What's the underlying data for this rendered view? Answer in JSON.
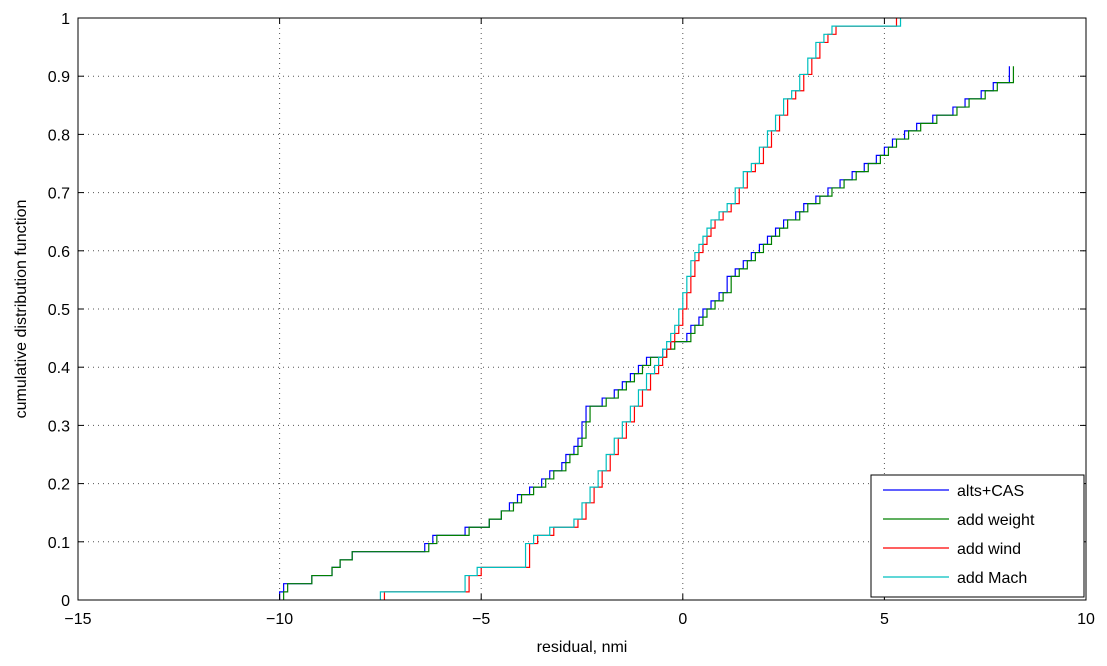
{
  "chart_data": {
    "type": "line",
    "xlabel": "residual, nmi",
    "ylabel": "cumulative distribution function",
    "xlim": [
      -15,
      10
    ],
    "ylim": [
      0,
      1
    ],
    "xticks": [
      -15,
      -10,
      -5,
      0,
      5,
      10
    ],
    "yticks": [
      0,
      0.1,
      0.2,
      0.3,
      0.4,
      0.5,
      0.6,
      0.7,
      0.8,
      0.9,
      1
    ],
    "xtick_labels": [
      "−15",
      "−10",
      "−5",
      "0",
      "5",
      "10"
    ],
    "ytick_labels": [
      "0",
      "0.1",
      "0.2",
      "0.3",
      "0.4",
      "0.5",
      "0.6",
      "0.7",
      "0.8",
      "0.9",
      "1"
    ],
    "grid": true,
    "legend_position": "bottom-right",
    "series": [
      {
        "name": "alts+CAS",
        "color": "#0000ff",
        "x": [
          -10,
          -9.9,
          -9.2,
          -8.7,
          -8.5,
          -8.2,
          -8.0,
          -6.4,
          -6.2,
          -5.4,
          -5.1,
          -4.8,
          -4.5,
          -4.3,
          -4.1,
          -3.8,
          -3.5,
          -3.3,
          -3.0,
          -2.9,
          -2.7,
          -2.6,
          -2.5,
          -2.4,
          -2.2,
          -2.0,
          -1.7,
          -1.5,
          -1.3,
          -1.1,
          -0.9,
          -0.7,
          -0.5,
          -0.3,
          -0.1,
          0.1,
          0.2,
          0.4,
          0.5,
          0.7,
          0.9,
          1.1,
          1.3,
          1.5,
          1.7,
          1.9,
          2.1,
          2.3,
          2.5,
          2.8,
          3.0,
          3.3,
          3.6,
          3.9,
          4.2,
          4.5,
          4.8,
          5.0,
          5.2,
          5.5,
          5.8,
          6.2,
          6.7,
          7.0,
          7.4,
          7.7,
          8.1
        ],
        "y": [
          0.014,
          0.028,
          0.042,
          0.056,
          0.069,
          0.083,
          0.083,
          0.097,
          0.111,
          0.125,
          0.125,
          0.139,
          0.153,
          0.167,
          0.181,
          0.194,
          0.208,
          0.222,
          0.236,
          0.25,
          0.264,
          0.278,
          0.306,
          0.333,
          0.333,
          0.347,
          0.361,
          0.375,
          0.389,
          0.403,
          0.417,
          0.417,
          0.431,
          0.444,
          0.444,
          0.458,
          0.472,
          0.486,
          0.5,
          0.514,
          0.528,
          0.556,
          0.569,
          0.583,
          0.597,
          0.611,
          0.625,
          0.639,
          0.653,
          0.667,
          0.681,
          0.694,
          0.708,
          0.722,
          0.736,
          0.75,
          0.764,
          0.778,
          0.792,
          0.806,
          0.819,
          0.833,
          0.847,
          0.861,
          0.875,
          0.889,
          0.917
        ]
      },
      {
        "name": "add weight",
        "color": "#008000",
        "x": [
          -9.9,
          -9.8,
          -9.2,
          -8.7,
          -8.5,
          -8.2,
          -8.0,
          -6.3,
          -6.1,
          -5.3,
          -5.0,
          -4.8,
          -4.5,
          -4.2,
          -4.0,
          -3.7,
          -3.4,
          -3.2,
          -2.9,
          -2.8,
          -2.6,
          -2.5,
          -2.4,
          -2.3,
          -2.1,
          -1.9,
          -1.6,
          -1.4,
          -1.2,
          -1.0,
          -0.8,
          -0.6,
          -0.4,
          -0.2,
          0.0,
          0.2,
          0.3,
          0.5,
          0.6,
          0.8,
          1.0,
          1.2,
          1.4,
          1.6,
          1.8,
          2.0,
          2.2,
          2.4,
          2.6,
          2.9,
          3.1,
          3.4,
          3.7,
          4.0,
          4.3,
          4.6,
          4.9,
          5.1,
          5.3,
          5.6,
          5.9,
          6.3,
          6.8,
          7.1,
          7.5,
          7.8,
          8.2
        ],
        "y": [
          0.014,
          0.028,
          0.042,
          0.056,
          0.069,
          0.083,
          0.083,
          0.097,
          0.111,
          0.125,
          0.125,
          0.139,
          0.153,
          0.167,
          0.181,
          0.194,
          0.208,
          0.222,
          0.236,
          0.25,
          0.264,
          0.278,
          0.306,
          0.333,
          0.333,
          0.347,
          0.361,
          0.375,
          0.389,
          0.403,
          0.417,
          0.417,
          0.431,
          0.444,
          0.444,
          0.458,
          0.472,
          0.486,
          0.5,
          0.514,
          0.528,
          0.556,
          0.569,
          0.583,
          0.597,
          0.611,
          0.625,
          0.639,
          0.653,
          0.667,
          0.681,
          0.694,
          0.708,
          0.722,
          0.736,
          0.75,
          0.764,
          0.778,
          0.792,
          0.806,
          0.819,
          0.833,
          0.847,
          0.861,
          0.875,
          0.889,
          0.917
        ]
      },
      {
        "name": "add wind",
        "color": "#ff0000",
        "x": [
          -7.4,
          -5.3,
          -5.0,
          -3.8,
          -3.6,
          -3.2,
          -2.6,
          -2.4,
          -2.2,
          -2.0,
          -1.8,
          -1.6,
          -1.4,
          -1.2,
          -1.0,
          -0.8,
          -0.6,
          -0.5,
          -0.4,
          -0.3,
          -0.2,
          -0.1,
          0.0,
          0.1,
          0.2,
          0.3,
          0.4,
          0.5,
          0.6,
          0.7,
          0.8,
          1.0,
          1.2,
          1.4,
          1.6,
          1.8,
          2.0,
          2.2,
          2.4,
          2.6,
          2.8,
          3.0,
          3.2,
          3.4,
          3.6,
          3.8,
          5.3
        ],
        "y": [
          0.014,
          0.042,
          0.056,
          0.097,
          0.111,
          0.125,
          0.139,
          0.167,
          0.194,
          0.222,
          0.25,
          0.278,
          0.306,
          0.333,
          0.361,
          0.389,
          0.403,
          0.417,
          0.431,
          0.444,
          0.458,
          0.472,
          0.5,
          0.528,
          0.556,
          0.583,
          0.597,
          0.611,
          0.625,
          0.639,
          0.653,
          0.667,
          0.681,
          0.708,
          0.736,
          0.75,
          0.778,
          0.806,
          0.833,
          0.861,
          0.875,
          0.903,
          0.931,
          0.958,
          0.972,
          0.986,
          1.0
        ]
      },
      {
        "name": "add Mach",
        "color": "#00bfbf",
        "x": [
          -7.5,
          -5.4,
          -5.1,
          -3.9,
          -3.7,
          -3.3,
          -2.7,
          -2.5,
          -2.3,
          -2.1,
          -1.9,
          -1.7,
          -1.5,
          -1.3,
          -1.1,
          -0.9,
          -0.7,
          -0.6,
          -0.5,
          -0.4,
          -0.3,
          -0.2,
          -0.1,
          0.0,
          0.1,
          0.2,
          0.3,
          0.4,
          0.5,
          0.6,
          0.7,
          0.9,
          1.1,
          1.3,
          1.5,
          1.7,
          1.9,
          2.1,
          2.3,
          2.5,
          2.7,
          2.9,
          3.1,
          3.3,
          3.5,
          3.7,
          5.4
        ],
        "y": [
          0.014,
          0.042,
          0.056,
          0.097,
          0.111,
          0.125,
          0.139,
          0.167,
          0.194,
          0.222,
          0.25,
          0.278,
          0.306,
          0.333,
          0.361,
          0.389,
          0.403,
          0.417,
          0.431,
          0.444,
          0.458,
          0.472,
          0.5,
          0.528,
          0.556,
          0.583,
          0.597,
          0.611,
          0.625,
          0.639,
          0.653,
          0.667,
          0.681,
          0.708,
          0.736,
          0.75,
          0.778,
          0.806,
          0.833,
          0.861,
          0.875,
          0.903,
          0.931,
          0.958,
          0.972,
          0.986,
          1.0
        ]
      }
    ]
  }
}
